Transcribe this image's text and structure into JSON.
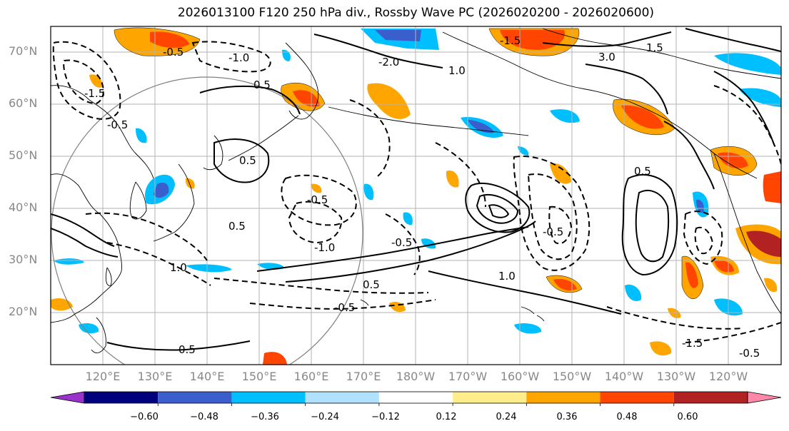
{
  "title": "2026013100 F120 250 hPa div., Rossby Wave PC (2026020200 - 2026020600)",
  "latitude_labels": [
    "70°N",
    "60°N",
    "50°N",
    "40°N",
    "30°N",
    "20°N"
  ],
  "longitude_labels": [
    "120°E",
    "130°E",
    "140°E",
    "150°E",
    "160°E",
    "170°E",
    "180°W",
    "170°W",
    "160°W",
    "150°W",
    "140°W",
    "130°W",
    "120°W"
  ],
  "colorbar": {
    "tick_labels": [
      "−0.60",
      "−0.48",
      "−0.36",
      "−0.24",
      "−0.12",
      "0.12",
      "0.24",
      "0.36",
      "0.48",
      "0.60"
    ],
    "colors": [
      "#9933cc",
      "#00007f",
      "#3a5fcd",
      "#00bfff",
      "#b0e2ff",
      "#ffffff",
      "#ffec8b",
      "#ffa500",
      "#ff4500",
      "#b22222",
      "#ff88aa"
    ]
  },
  "contour_labels": [
    "-0.5",
    "-1.0",
    "-1.5",
    "-2.0",
    "-0.5",
    "0.5",
    "1.0",
    "1.5",
    "-1.5",
    "3.0",
    "0.5",
    "-0.5",
    "0.5",
    "-0.5",
    "1.0",
    "-1.0",
    "0.5",
    "-0.5",
    "1.0",
    "-0.5",
    "0.5",
    "0.5",
    "-0.5",
    "-1.5"
  ]
}
